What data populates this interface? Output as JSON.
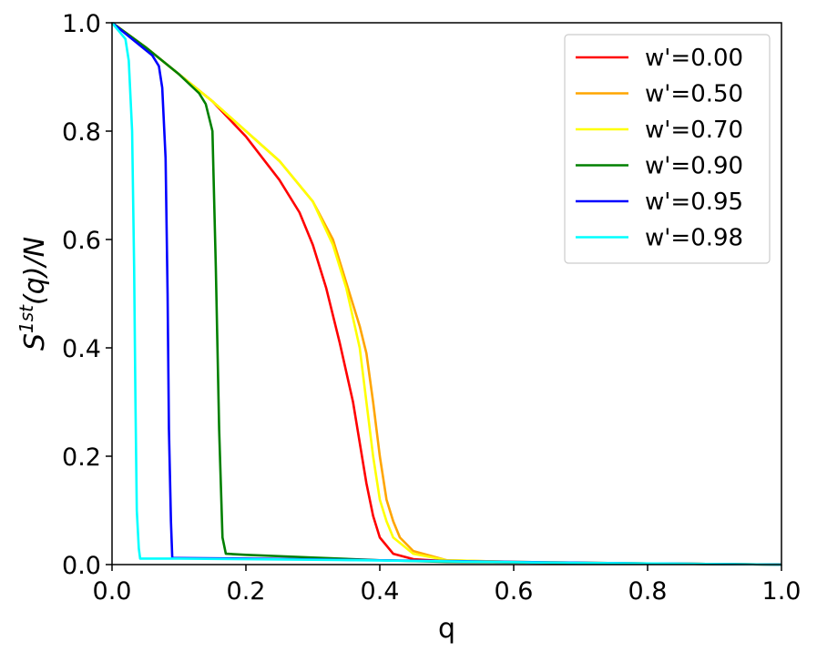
{
  "chart_data": {
    "type": "line",
    "xlabel": "q",
    "ylabel": "S^{1st}(q)/N",
    "ylabel_parts": {
      "base": "S",
      "sup": "1st",
      "rest": "(q)/N"
    },
    "xlim": [
      0.0,
      1.0
    ],
    "ylim": [
      0.0,
      1.0
    ],
    "x_ticks": [
      "0.0",
      "0.2",
      "0.4",
      "0.6",
      "0.8",
      "1.0"
    ],
    "y_ticks": [
      "0.0",
      "0.2",
      "0.4",
      "0.6",
      "0.8",
      "1.0"
    ],
    "grid": false,
    "legend_position": "top-right",
    "series": [
      {
        "name": "w'=0.00",
        "color": "#ff0000",
        "x": [
          0.0,
          0.05,
          0.1,
          0.15,
          0.2,
          0.25,
          0.28,
          0.3,
          0.32,
          0.34,
          0.36,
          0.38,
          0.39,
          0.4,
          0.42,
          0.45,
          0.5,
          0.6,
          0.8,
          1.0
        ],
        "y": [
          1.0,
          0.955,
          0.905,
          0.855,
          0.79,
          0.71,
          0.65,
          0.59,
          0.51,
          0.41,
          0.3,
          0.15,
          0.09,
          0.05,
          0.02,
          0.01,
          0.006,
          0.004,
          0.002,
          0.0
        ]
      },
      {
        "name": "w'=0.50",
        "color": "#ffa500",
        "x": [
          0.0,
          0.05,
          0.1,
          0.15,
          0.2,
          0.25,
          0.3,
          0.33,
          0.35,
          0.37,
          0.38,
          0.39,
          0.4,
          0.41,
          0.42,
          0.43,
          0.45,
          0.5,
          0.6,
          0.8,
          1.0
        ],
        "y": [
          1.0,
          0.955,
          0.905,
          0.855,
          0.8,
          0.745,
          0.67,
          0.6,
          0.52,
          0.44,
          0.39,
          0.3,
          0.2,
          0.12,
          0.08,
          0.05,
          0.025,
          0.008,
          0.005,
          0.002,
          0.0
        ]
      },
      {
        "name": "w'=0.70",
        "color": "#ffff00",
        "x": [
          0.0,
          0.05,
          0.1,
          0.15,
          0.2,
          0.25,
          0.3,
          0.33,
          0.35,
          0.37,
          0.38,
          0.39,
          0.4,
          0.41,
          0.42,
          0.45,
          0.5,
          0.6,
          0.8,
          1.0
        ],
        "y": [
          1.0,
          0.955,
          0.905,
          0.855,
          0.8,
          0.745,
          0.67,
          0.59,
          0.51,
          0.4,
          0.3,
          0.2,
          0.12,
          0.08,
          0.05,
          0.02,
          0.008,
          0.005,
          0.002,
          0.0
        ]
      },
      {
        "name": "w'=0.90",
        "color": "#008000",
        "x": [
          0.0,
          0.05,
          0.1,
          0.13,
          0.14,
          0.15,
          0.155,
          0.16,
          0.165,
          0.17,
          0.2,
          0.3,
          0.4,
          0.5,
          0.6,
          0.8,
          1.0
        ],
        "y": [
          1.0,
          0.955,
          0.905,
          0.87,
          0.85,
          0.8,
          0.55,
          0.25,
          0.05,
          0.02,
          0.018,
          0.013,
          0.008,
          0.005,
          0.004,
          0.002,
          0.0
        ]
      },
      {
        "name": "w'=0.95",
        "color": "#0000ff",
        "x": [
          0.0,
          0.03,
          0.06,
          0.07,
          0.075,
          0.08,
          0.083,
          0.085,
          0.088,
          0.09,
          0.1,
          0.2,
          0.4,
          0.6,
          0.8,
          1.0
        ],
        "y": [
          1.0,
          0.97,
          0.94,
          0.92,
          0.88,
          0.75,
          0.5,
          0.25,
          0.08,
          0.012,
          0.012,
          0.011,
          0.008,
          0.005,
          0.002,
          0.0
        ]
      },
      {
        "name": "w'=0.98",
        "color": "#00ffff",
        "x": [
          0.0,
          0.02,
          0.025,
          0.03,
          0.033,
          0.035,
          0.037,
          0.04,
          0.042,
          0.1,
          0.3,
          0.5,
          0.7,
          1.0
        ],
        "y": [
          1.0,
          0.97,
          0.93,
          0.8,
          0.55,
          0.3,
          0.1,
          0.03,
          0.011,
          0.011,
          0.009,
          0.006,
          0.003,
          0.0
        ]
      }
    ]
  }
}
